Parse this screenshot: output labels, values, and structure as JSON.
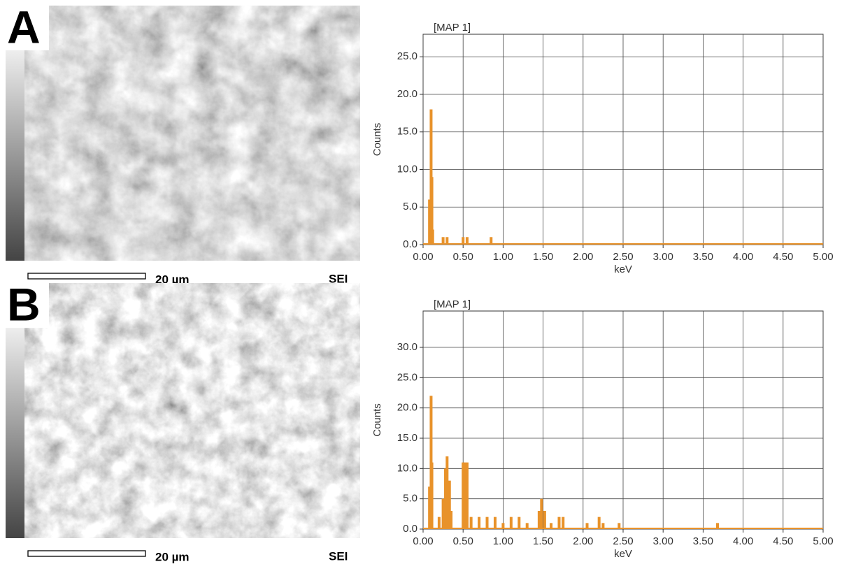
{
  "chart_data": [
    {
      "type": "bar",
      "panel_label": "A",
      "scale_bar_label": "20 µm",
      "detector_label": "SEI",
      "title": "[MAP 1]",
      "y_label": "Counts",
      "x_label": "keV",
      "color": "#e8922a",
      "grid": true,
      "x": [
        0.08,
        0.1,
        0.11,
        0.12,
        0.25,
        0.3,
        0.5,
        0.55,
        0.85
      ],
      "values": [
        6,
        18,
        9,
        2,
        1,
        1,
        1,
        1,
        1
      ],
      "xlim": [
        0,
        5
      ],
      "ylim": [
        0,
        28
      ],
      "xticks": [
        {
          "value": 0,
          "label": "0.00"
        },
        {
          "value": 0.5,
          "label": "0.50"
        },
        {
          "value": 1,
          "label": "1.00"
        },
        {
          "value": 1.5,
          "label": "1.50"
        },
        {
          "value": 2,
          "label": "2.00"
        },
        {
          "value": 2.5,
          "label": "2.50"
        },
        {
          "value": 3,
          "label": "3.00"
        },
        {
          "value": 3.5,
          "label": "3.50"
        },
        {
          "value": 4,
          "label": "4.00"
        },
        {
          "value": 4.5,
          "label": "4.50"
        },
        {
          "value": 5,
          "label": "5.00"
        }
      ],
      "yticks": [
        {
          "value": 0,
          "label": "0.0"
        },
        {
          "value": 5,
          "label": "5.0"
        },
        {
          "value": 10,
          "label": "10.0"
        },
        {
          "value": 15,
          "label": "15.0"
        },
        {
          "value": 20,
          "label": "20.0"
        },
        {
          "value": 25,
          "label": "25.0"
        }
      ]
    },
    {
      "type": "bar",
      "panel_label": "B",
      "scale_bar_label": "20 µm",
      "detector_label": "SEI",
      "title": "[MAP 1]",
      "y_label": "Counts",
      "x_label": "keV",
      "color": "#e8922a",
      "grid": true,
      "x": [
        0.08,
        0.1,
        0.11,
        0.2,
        0.25,
        0.28,
        0.3,
        0.33,
        0.35,
        0.5,
        0.52,
        0.55,
        0.6,
        0.7,
        0.8,
        0.9,
        1.0,
        1.1,
        1.2,
        1.3,
        1.45,
        1.48,
        1.52,
        1.6,
        1.7,
        1.75,
        2.05,
        2.2,
        2.25,
        2.45,
        3.68
      ],
      "values": [
        7,
        22,
        11,
        2,
        5,
        10,
        12,
        8,
        3,
        11,
        11,
        11,
        2,
        2,
        2,
        2,
        1,
        2,
        2,
        1,
        3,
        5,
        3,
        1,
        2,
        2,
        1,
        2,
        1,
        1,
        1
      ],
      "xlim": [
        0,
        5
      ],
      "ylim": [
        0,
        36
      ],
      "xticks": [
        {
          "value": 0,
          "label": "0.00"
        },
        {
          "value": 0.5,
          "label": "0.50"
        },
        {
          "value": 1,
          "label": "1.00"
        },
        {
          "value": 1.5,
          "label": "1.50"
        },
        {
          "value": 2,
          "label": "2.00"
        },
        {
          "value": 2.5,
          "label": "2.50"
        },
        {
          "value": 3,
          "label": "3.00"
        },
        {
          "value": 3.5,
          "label": "3.50"
        },
        {
          "value": 4,
          "label": "4.00"
        },
        {
          "value": 4.5,
          "label": "4.50"
        },
        {
          "value": 5,
          "label": "5.00"
        }
      ],
      "yticks": [
        {
          "value": 0,
          "label": "0.0"
        },
        {
          "value": 5,
          "label": "5.0"
        },
        {
          "value": 10,
          "label": "10.0"
        },
        {
          "value": 15,
          "label": "15.0"
        },
        {
          "value": 20,
          "label": "20.0"
        },
        {
          "value": 25,
          "label": "25.0"
        },
        {
          "value": 30,
          "label": "30.0"
        }
      ]
    }
  ]
}
